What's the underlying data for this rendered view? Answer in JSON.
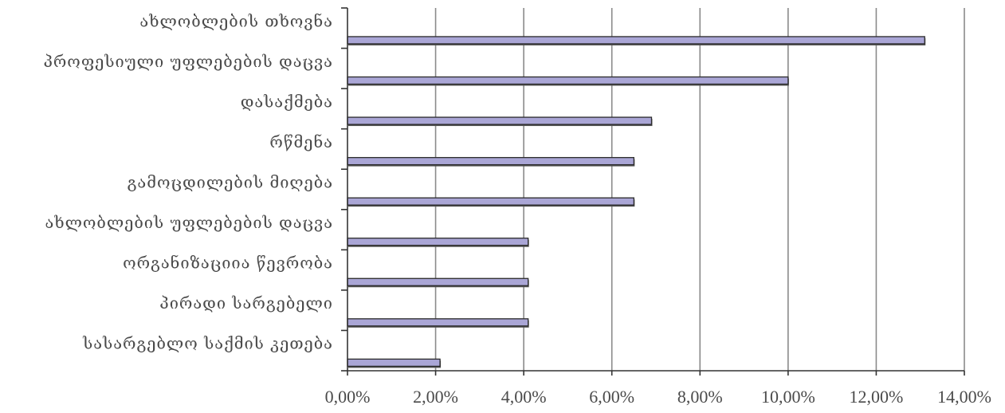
{
  "chart_data": {
    "type": "bar",
    "orientation": "horizontal",
    "categories": [
      "ახლობლების თხოვნა",
      "პროფესიული უფლებების დაცვა",
      "დასაქმება",
      "რწმენა",
      "გამოცდილების მიღება",
      "ახლობლების უფლებების დაცვა",
      "ორგანიზაციია წევრობა",
      "პირადი სარგებელი",
      "სასარგებლო საქმის კეთება"
    ],
    "values": [
      13.1,
      10.0,
      6.9,
      6.5,
      6.5,
      4.1,
      4.1,
      4.1,
      2.1
    ],
    "x_ticks": [
      "0,00%",
      "2,00%",
      "4,00%",
      "6,00%",
      "8,00%",
      "10,00%",
      "12,00%",
      "14,00%"
    ],
    "xlim": [
      0,
      14
    ],
    "grid": true,
    "title": "",
    "xlabel": "",
    "ylabel": "",
    "colors": {
      "bar_fill": "#aaa6d6",
      "bar_border": "#2b2b2b",
      "grid": "#8a8a8a",
      "text": "#4a4a4a"
    }
  }
}
